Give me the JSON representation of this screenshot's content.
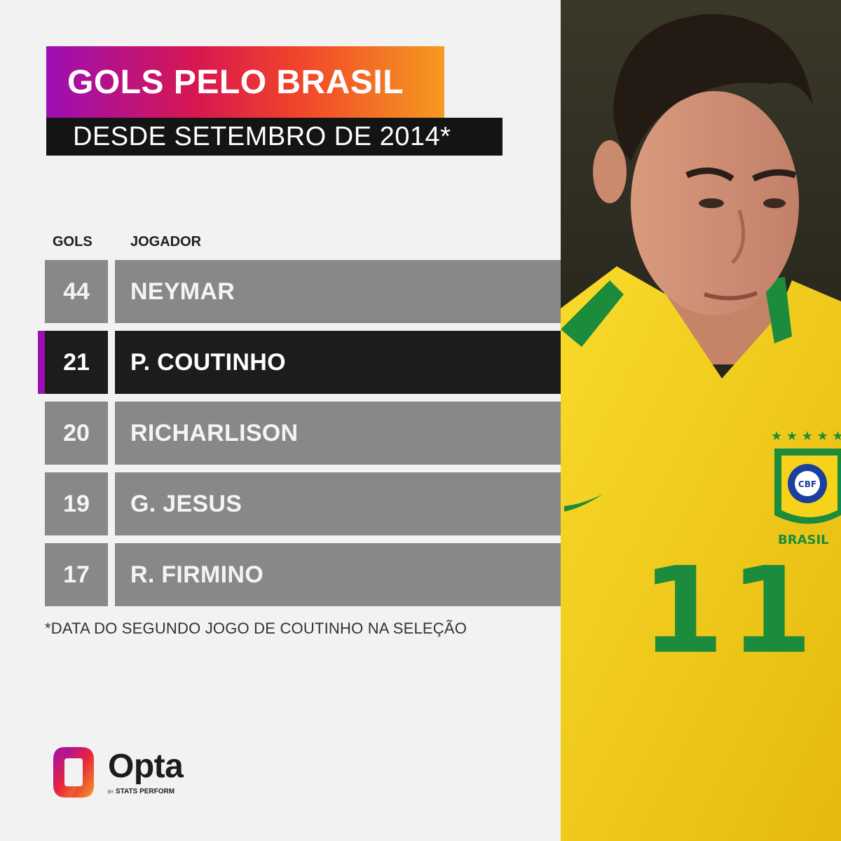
{
  "title": "GOLS PELO BRASIL",
  "subtitle": "DESDE SETEMBRO DE 2014*",
  "columns": {
    "goals": "GOLS",
    "player": "JOGADOR"
  },
  "footnote": "*DATA DO SEGUNDO JOGO DE COUTINHO NA SELEÇÃO",
  "photo": {
    "crest_text": "CBF",
    "country_text": "BRASIL",
    "shirt_number": "11"
  },
  "brand": {
    "name": "Opta",
    "by": "BY",
    "sub": "STATS PERFORM"
  },
  "colors": {
    "accent": "#9b0fb4",
    "gradient": [
      "#9b0fb4",
      "#d8174f",
      "#f0422b",
      "#f59a20"
    ],
    "row_default": "#888888",
    "row_highlight": "#1c1c1c",
    "shirt": "#f6d21a",
    "shirt_trim": "#1c8c3c"
  },
  "chart_data": {
    "type": "table",
    "columns": [
      "GOLS",
      "JOGADOR"
    ],
    "rows": [
      {
        "goals": "44",
        "player": "NEYMAR",
        "highlight": false
      },
      {
        "goals": "21",
        "player": "P. COUTINHO",
        "highlight": true
      },
      {
        "goals": "20",
        "player": "RICHARLISON",
        "highlight": false
      },
      {
        "goals": "19",
        "player": "G. JESUS",
        "highlight": false
      },
      {
        "goals": "17",
        "player": "R. FIRMINO",
        "highlight": false
      }
    ]
  }
}
